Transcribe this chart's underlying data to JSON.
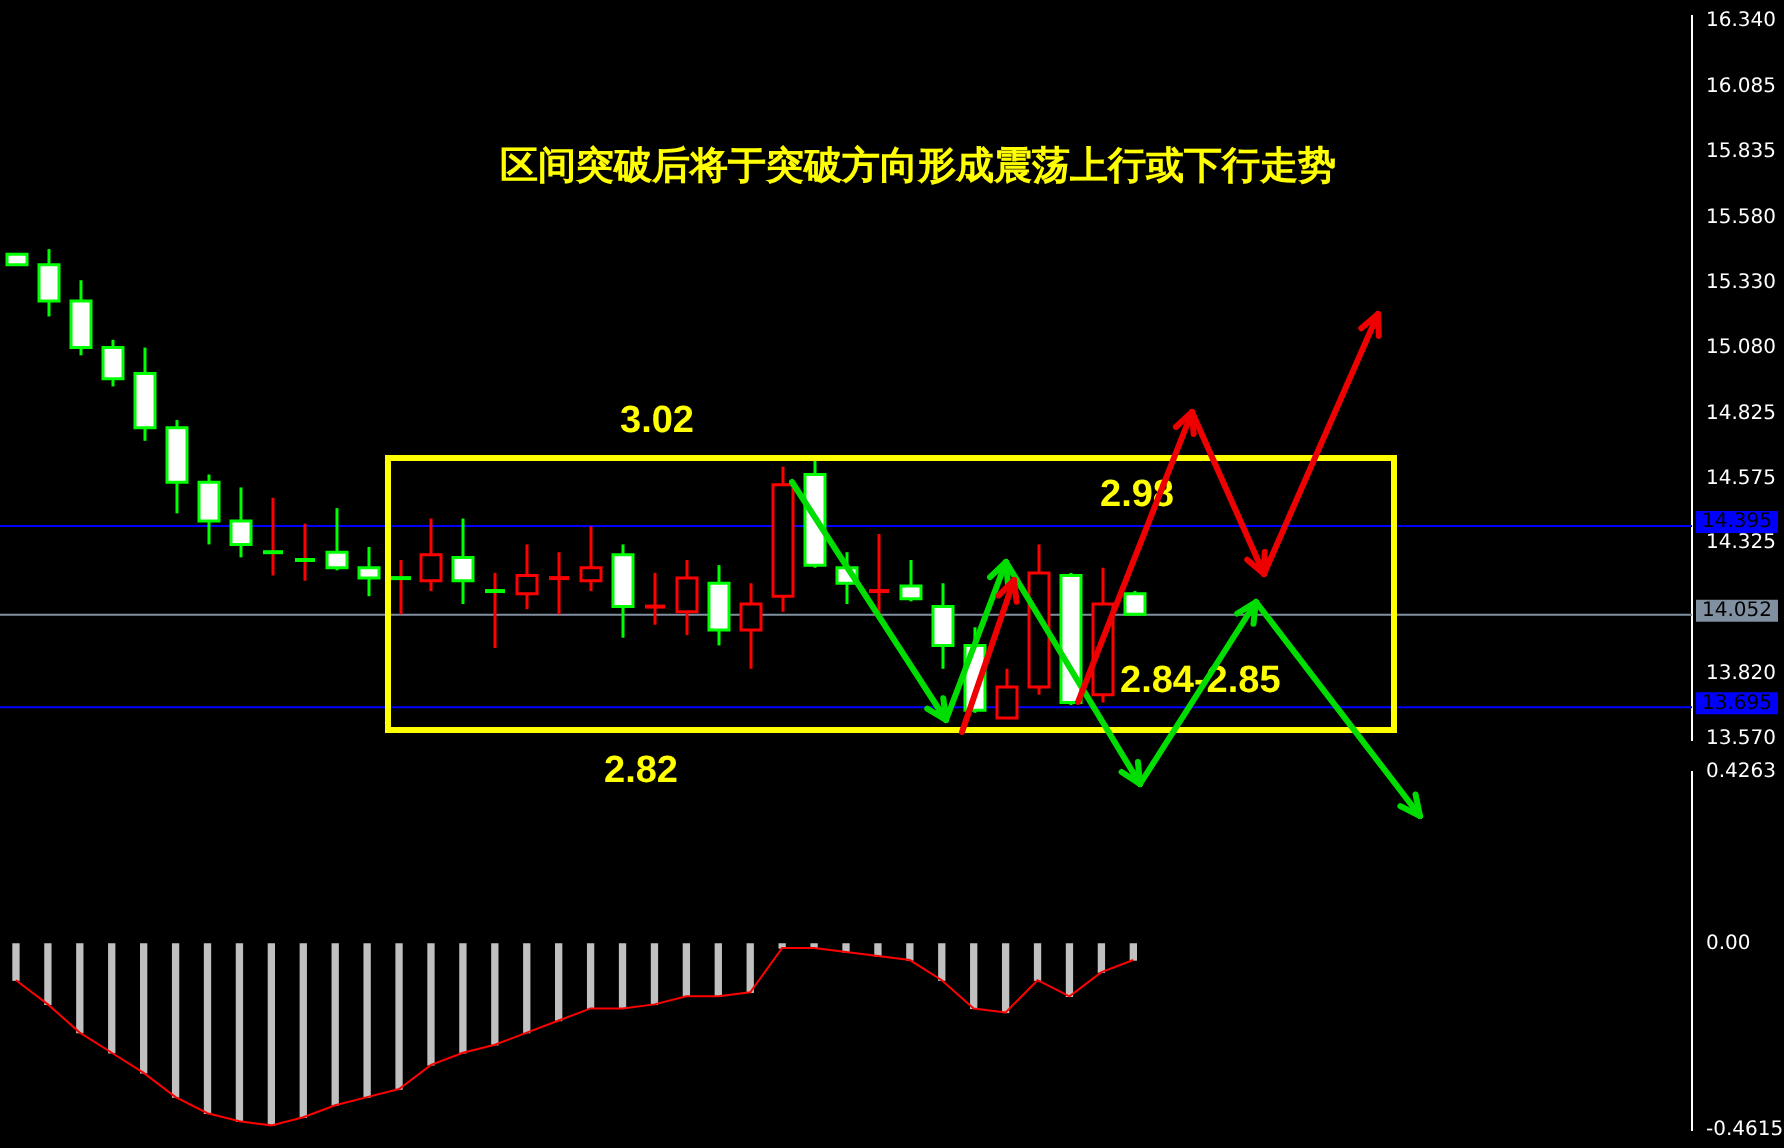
{
  "chart_data": [
    {
      "type": "candlestick",
      "title": "区间突破后将于突破方向形成震荡上行或下行走势",
      "annotations": [
        "3.02",
        "2.98",
        "2.84-2.85",
        "2.82"
      ],
      "categories": [
        null,
        null,
        null,
        null,
        null,
        null,
        null,
        null,
        null,
        null,
        null,
        null,
        null,
        null,
        null,
        null,
        null,
        null,
        null,
        null,
        null,
        null,
        null,
        null,
        null,
        null,
        null,
        null,
        null,
        null,
        null,
        null,
        null,
        null,
        null,
        null,
        null,
        null,
        null,
        null,
        null,
        null,
        null,
        null,
        null,
        null,
        null,
        null,
        null,
        null,
        null,
        null,
        null
      ],
      "ohlc": [
        [
          15.44,
          15.44,
          15.4,
          15.4
        ],
        [
          15.4,
          15.46,
          15.2,
          15.26
        ],
        [
          15.26,
          15.34,
          15.05,
          15.08
        ],
        [
          15.08,
          15.11,
          14.93,
          14.96
        ],
        [
          14.98,
          15.08,
          14.72,
          14.77
        ],
        [
          14.77,
          14.8,
          14.44,
          14.56
        ],
        [
          14.56,
          14.59,
          14.32,
          14.41
        ],
        [
          14.41,
          14.54,
          14.27,
          14.32
        ],
        [
          14.29,
          14.5,
          14.2,
          14.29
        ],
        [
          14.26,
          14.4,
          14.18,
          14.26
        ],
        [
          14.29,
          14.46,
          14.22,
          14.23
        ],
        [
          14.23,
          14.31,
          14.12,
          14.19
        ],
        [
          14.19,
          14.26,
          14.05,
          14.19
        ],
        [
          14.18,
          14.42,
          14.14,
          14.28
        ],
        [
          14.27,
          14.42,
          14.09,
          14.18
        ],
        [
          14.14,
          14.21,
          13.92,
          14.14
        ],
        [
          14.13,
          14.32,
          14.07,
          14.2
        ],
        [
          14.19,
          14.29,
          14.05,
          14.19
        ],
        [
          14.18,
          14.39,
          14.14,
          14.23
        ],
        [
          14.28,
          14.32,
          13.96,
          14.08
        ],
        [
          14.08,
          14.21,
          14.01,
          14.08
        ],
        [
          14.06,
          14.26,
          13.97,
          14.19
        ],
        [
          14.17,
          14.24,
          13.93,
          13.99
        ],
        [
          13.99,
          14.17,
          13.84,
          14.09
        ],
        [
          14.12,
          14.62,
          14.06,
          14.55
        ],
        [
          14.59,
          14.65,
          14.23,
          14.24
        ],
        [
          14.23,
          14.29,
          14.09,
          14.17
        ],
        [
          14.14,
          14.36,
          14.05,
          14.14
        ],
        [
          14.16,
          14.26,
          14.1,
          14.11
        ],
        [
          14.08,
          14.17,
          13.84,
          13.93
        ],
        [
          13.93,
          14.0,
          13.67,
          13.68
        ],
        [
          13.65,
          13.84,
          13.65,
          13.77
        ],
        [
          13.77,
          14.32,
          13.74,
          14.21
        ],
        [
          14.2,
          14.21,
          13.7,
          13.71
        ],
        [
          13.74,
          14.23,
          13.71,
          14.09
        ],
        [
          14.13,
          14.14,
          14.05,
          14.05
        ],
        null,
        null,
        null,
        null,
        null,
        null,
        null,
        null,
        null,
        null,
        null,
        null,
        null,
        null,
        null,
        null,
        null
      ],
      "colors": [
        "#ffffff",
        "#ffffff",
        "#ffffff",
        "#ffffff",
        "#ffffff",
        "#ffffff",
        "#ffffff",
        "#ffffff",
        "#00ff00",
        "#00ff00",
        "#ffffff",
        "#ffffff",
        "#00ff00",
        "#000000",
        "#ffffff",
        "#00ff00",
        "#000000",
        "#ff0000",
        "#000000",
        "#ffffff",
        "#ff0000",
        "#000000",
        "#ffffff",
        "#000000",
        "#000000",
        "#ffffff",
        "#ffffff",
        "#ff0000",
        "#ffffff",
        "#ffffff",
        "#ffffff",
        "#000000",
        "#000000",
        "#ffffff",
        "#000000",
        "#ffffff",
        null,
        null,
        null,
        null,
        null,
        null,
        null,
        null,
        null,
        null,
        null,
        null,
        null,
        null,
        null,
        null,
        null
      ],
      "ylim": [
        13.565,
        16.36
      ],
      "yticks": [
        {
          "value": 13.57,
          "label": "13.570"
        },
        {
          "value": 13.82,
          "label": "13.820"
        },
        {
          "value": 14.325,
          "label": "14.325"
        },
        {
          "value": 14.575,
          "label": "14.575"
        },
        {
          "value": 14.825,
          "label": "14.825"
        },
        {
          "value": 15.08,
          "label": "15.080"
        },
        {
          "value": 15.33,
          "label": "15.330"
        },
        {
          "value": 15.58,
          "label": "15.580"
        },
        {
          "value": 15.835,
          "label": "15.835"
        },
        {
          "value": 16.085,
          "label": "16.085"
        },
        {
          "value": 16.34,
          "label": "16.340"
        }
      ],
      "ref_lines": [
        {
          "axis": "y",
          "value": 14.395,
          "label": "14.395",
          "color": "#0000ff"
        },
        {
          "axis": "y",
          "value": 14.052,
          "label": "14.052",
          "color": "#8090a0"
        },
        {
          "axis": "y",
          "value": 13.695,
          "label": "13.695",
          "color": "#0000ff"
        }
      ],
      "tick_labels": "y",
      "grid": false,
      "legend": false
    },
    {
      "type": "bar",
      "categories": [
        null,
        null,
        null,
        null,
        null,
        null,
        null,
        null,
        null,
        null,
        null,
        null,
        null,
        null,
        null,
        null,
        null,
        null,
        null,
        null,
        null,
        null,
        null,
        null,
        null,
        null,
        null,
        null,
        null,
        null,
        null,
        null,
        null,
        null,
        null,
        null,
        null,
        null,
        null,
        null,
        null,
        null,
        null,
        null,
        null,
        null,
        null,
        null,
        null,
        null,
        null,
        null,
        null
      ],
      "series": [
        {
          "type": "bar",
          "color": "#c0c0c0",
          "values": [
            -0.09,
            -0.15,
            -0.22,
            -0.27,
            -0.32,
            -0.38,
            -0.42,
            -0.44,
            -0.45,
            -0.43,
            -0.4,
            -0.38,
            -0.36,
            -0.3,
            -0.27,
            -0.25,
            -0.22,
            -0.19,
            -0.16,
            -0.16,
            -0.15,
            -0.13,
            -0.13,
            -0.12,
            -0.01,
            -0.01,
            -0.02,
            -0.03,
            -0.04,
            -0.09,
            -0.16,
            -0.17,
            -0.09,
            -0.13,
            -0.07,
            -0.04,
            null,
            null,
            null,
            null,
            null,
            null,
            null,
            null,
            null,
            null,
            null,
            null,
            null,
            null,
            null,
            null,
            null
          ]
        },
        {
          "type": "line",
          "color": "#ff0000",
          "values": [
            -0.09,
            -0.15,
            -0.22,
            -0.27,
            -0.32,
            -0.38,
            -0.42,
            -0.44,
            -0.45,
            -0.43,
            -0.4,
            -0.38,
            -0.36,
            -0.3,
            -0.27,
            -0.25,
            -0.22,
            -0.19,
            -0.16,
            -0.16,
            -0.15,
            -0.13,
            -0.13,
            -0.12,
            -0.01,
            -0.01,
            -0.02,
            -0.03,
            -0.04,
            -0.09,
            -0.16,
            -0.17,
            -0.09,
            -0.13,
            -0.07,
            -0.04,
            null,
            null,
            null,
            null,
            null,
            null,
            null,
            null,
            null,
            null,
            null,
            null,
            null,
            null,
            null,
            null,
            null
          ]
        }
      ],
      "ylim": [
        -0.4615,
        0.4263
      ],
      "yticks": [
        0.4263,
        {
          "value": 0,
          "label": "0.00"
        },
        -0.4615
      ],
      "tick_labels": "y",
      "grid": false,
      "legend": false
    }
  ]
}
